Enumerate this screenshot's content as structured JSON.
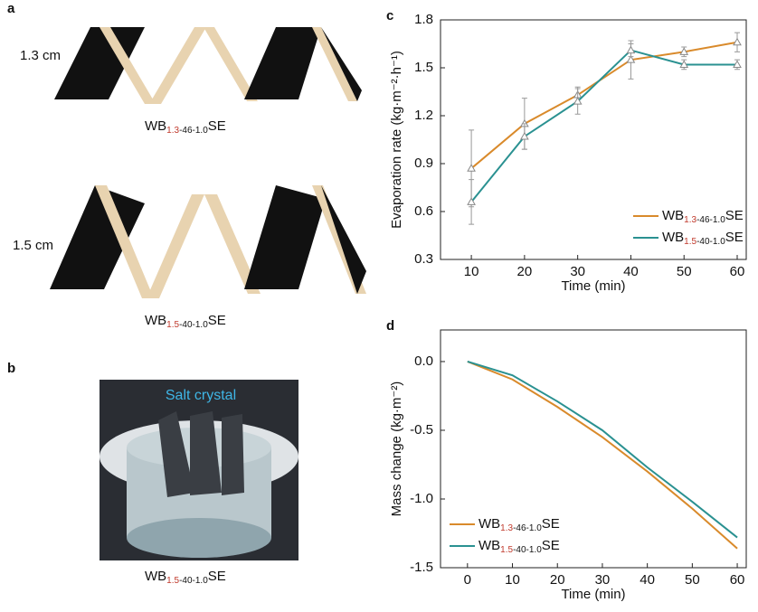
{
  "panels": {
    "a": {
      "label": "a",
      "top_size": "1.3 cm",
      "bottom_size": "1.5 cm",
      "top_caption": [
        "WB",
        "1.3",
        "-46-1.0",
        "SE"
      ],
      "bottom_caption": [
        "WB",
        "1.5",
        "-40-1.0",
        "SE"
      ]
    },
    "b": {
      "label": "b",
      "annotation": "Salt crystal",
      "caption": [
        "WB",
        "1.5",
        "-40-1.0",
        "SE"
      ]
    }
  },
  "chart_data": [
    {
      "type": "line",
      "label": "c",
      "x_label": "Time (min)",
      "y_label": "Evaporation rate (kg·m⁻²·h⁻¹)",
      "x": [
        10,
        20,
        30,
        40,
        50,
        60
      ],
      "xlim": [
        4.2,
        61.7
      ],
      "xticks": [
        10,
        20,
        30,
        40,
        50,
        60
      ],
      "ylim": [
        0.3,
        1.8
      ],
      "yticks": [
        0.3,
        0.6,
        0.9,
        1.2,
        1.5,
        1.8
      ],
      "markers": true,
      "legend": "lower right",
      "error_color": "#999999",
      "series": [
        {
          "name": [
            "WB",
            "1.3",
            "-46-1.0",
            "SE"
          ],
          "color": "#d98a2b",
          "values": [
            0.87,
            1.15,
            1.33,
            1.55,
            1.6,
            1.66
          ],
          "errors": [
            0.24,
            0.16,
            0.05,
            0.12,
            0.03,
            0.06
          ]
        },
        {
          "name": [
            "WB",
            "1.5",
            "-40-1.0",
            "SE"
          ],
          "color": "#2a9191",
          "values": [
            0.66,
            1.07,
            1.29,
            1.61,
            1.52,
            1.52
          ],
          "errors": [
            0.14,
            0.08,
            0.08,
            0.04,
            0.03,
            0.03
          ]
        }
      ]
    },
    {
      "type": "line",
      "label": "d",
      "x_label": "Time (min)",
      "y_label": "Mass change (kg·m⁻²)",
      "x": [
        0,
        10,
        20,
        30,
        40,
        50,
        60
      ],
      "xlim": [
        -6,
        62
      ],
      "xticks": [
        0,
        10,
        20,
        30,
        40,
        50,
        60
      ],
      "ylim": [
        -1.5,
        0.23
      ],
      "yticks": [
        -1.5,
        {
          "value": -1,
          "label": "-1.0"
        },
        -0.5,
        {
          "value": 0,
          "label": "0.0"
        }
      ],
      "markers": false,
      "legend": "lower left",
      "series": [
        {
          "name": [
            "WB",
            "1.3",
            "-46-1.0",
            "SE"
          ],
          "color": "#d98a2b",
          "values": [
            0,
            -0.13,
            -0.33,
            -0.55,
            -0.8,
            -1.07,
            -1.36
          ]
        },
        {
          "name": [
            "WB",
            "1.5",
            "-40-1.0",
            "SE"
          ],
          "color": "#2a9191",
          "values": [
            0,
            -0.1,
            -0.29,
            -0.5,
            -0.77,
            -1.02,
            -1.28
          ]
        }
      ]
    }
  ]
}
